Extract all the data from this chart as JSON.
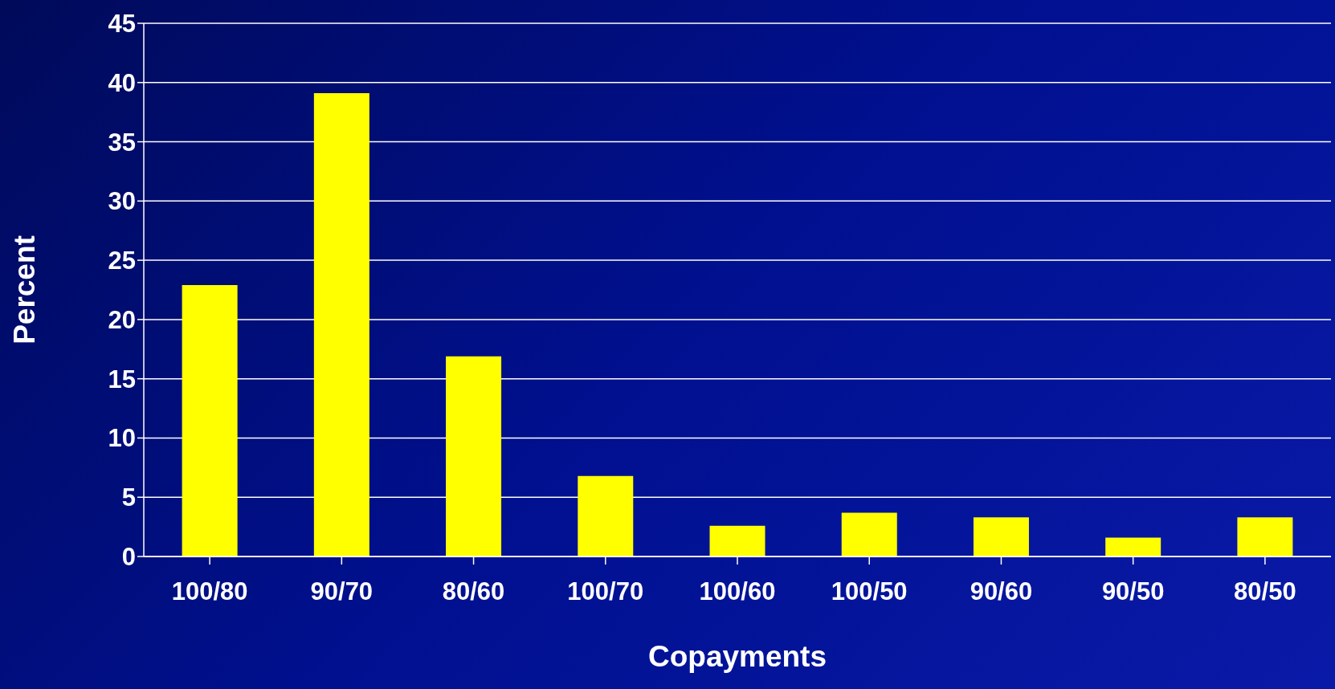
{
  "chart_data": {
    "type": "bar",
    "xlabel": "Copayments",
    "ylabel": "Percent",
    "categories": [
      "100/80",
      "90/70",
      "80/60",
      "100/70",
      "100/60",
      "100/50",
      "90/60",
      "90/50",
      "80/50"
    ],
    "values": [
      22.9,
      39.1,
      16.9,
      6.8,
      2.6,
      3.7,
      3.3,
      1.6,
      3.3
    ],
    "color": "#ffff00",
    "ylim": [
      0,
      45
    ],
    "yticks": [
      0,
      5,
      10,
      15,
      20,
      25,
      30,
      35,
      40,
      45
    ],
    "grid": "y",
    "legend": false
  }
}
